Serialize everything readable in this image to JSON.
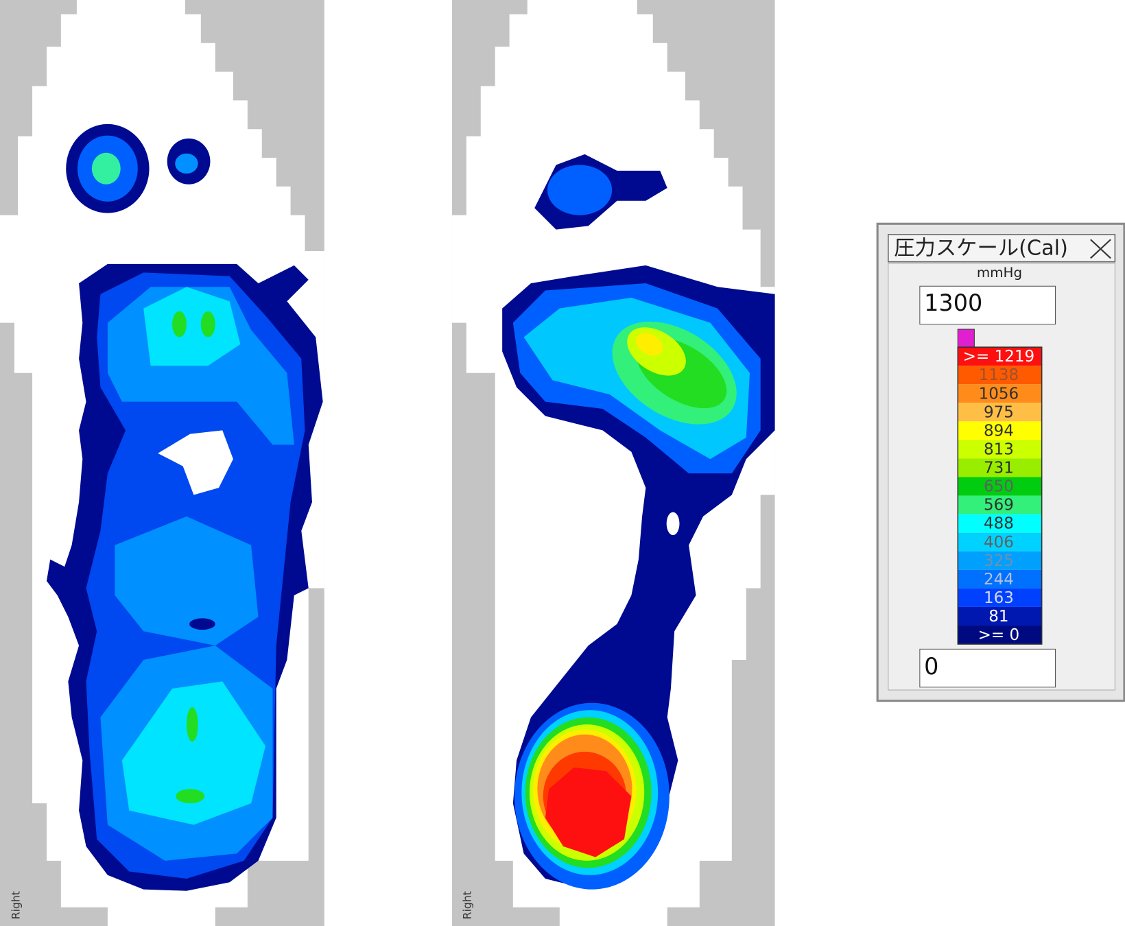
{
  "panels": [
    {
      "label": "Right"
    },
    {
      "label": "Right"
    }
  ],
  "scale_window": {
    "title": "圧力スケール(Cal)",
    "unit": "mmHg",
    "max_input": "1300",
    "min_input": "0",
    "levels": [
      {
        "label": ">= 1219",
        "color": "#ff1010",
        "text_color": "#ffffff"
      },
      {
        "label": "1138",
        "color": "#ff5a00",
        "text_color": "#a05030"
      },
      {
        "label": "1056",
        "color": "#ff8c1a",
        "text_color": "#303030"
      },
      {
        "label": "975",
        "color": "#ffbe46",
        "text_color": "#303030"
      },
      {
        "label": "894",
        "color": "#ffff00",
        "text_color": "#303030"
      },
      {
        "label": "813",
        "color": "#ccff00",
        "text_color": "#303030"
      },
      {
        "label": "731",
        "color": "#99ee00",
        "text_color": "#303030"
      },
      {
        "label": "650",
        "color": "#00cc10",
        "text_color": "#606060"
      },
      {
        "label": "569",
        "color": "#33f07a",
        "text_color": "#303030"
      },
      {
        "label": "488",
        "color": "#00ffff",
        "text_color": "#303030"
      },
      {
        "label": "406",
        "color": "#00d2ff",
        "text_color": "#606060"
      },
      {
        "label": "325",
        "color": "#00a0ff",
        "text_color": "#7090b0"
      },
      {
        "label": "244",
        "color": "#0070ff",
        "text_color": "#b0c0e0"
      },
      {
        "label": "163",
        "color": "#0040ff",
        "text_color": "#d0d8f0"
      },
      {
        "label": "81",
        "color": "#0018b0",
        "text_color": "#ffffff"
      },
      {
        "label": ">= 0",
        "color": "#000a80",
        "text_color": "#ffffff"
      }
    ]
  }
}
